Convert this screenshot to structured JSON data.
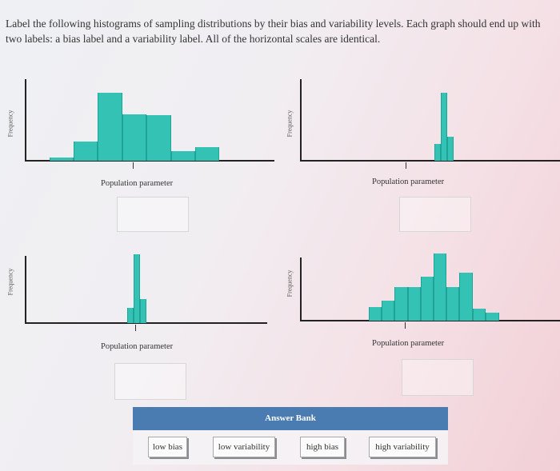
{
  "instructions": "Label the following histograms of sampling distributions by their bias and variability levels. Each graph should end up with two labels: a bias label and a variability label. All of the horizontal scales are identical.",
  "graphs": [
    {
      "y_axis_label": "Frequency",
      "x_marker_label": "Population parameter",
      "bars_relative": [
        0.05,
        0.28,
        0.99,
        0.68,
        0.66,
        0.14,
        0.2
      ],
      "bar_color": "#33c2b3"
    },
    {
      "y_axis_label": "Frequency",
      "x_marker_label": "Population parameter",
      "bars_relative": [
        0.25,
        1.0,
        0.35
      ],
      "bar_color": "#33c2b3"
    },
    {
      "y_axis_label": "Frequency",
      "x_marker_label": "Population parameter",
      "bars_relative": [
        0.22,
        1.0,
        0.35
      ],
      "bar_color": "#33c2b3"
    },
    {
      "y_axis_label": "Frequency",
      "x_marker_label": "Population parameter",
      "bars_relative": [
        0.2,
        0.3,
        0.5,
        0.5,
        0.65,
        1.0,
        0.5,
        0.72,
        0.18,
        0.12
      ],
      "bar_color": "#33c2b3"
    }
  ],
  "answer_bank": {
    "title": "Answer Bank",
    "header_color": "#4a7bb1",
    "options": [
      "low bias",
      "low variability",
      "high bias",
      "high variability"
    ]
  }
}
